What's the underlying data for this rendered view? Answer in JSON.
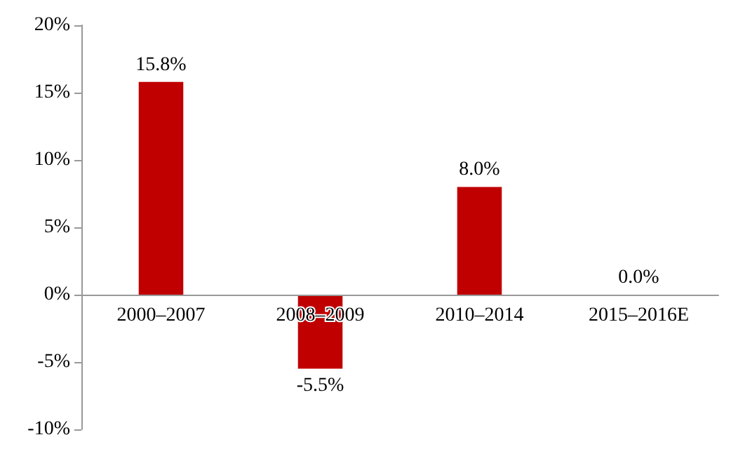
{
  "chart_data": {
    "type": "bar",
    "categories": [
      "2000–2007",
      "2008–2009",
      "2010–2014",
      "2015–2016E"
    ],
    "values": [
      15.8,
      -5.5,
      8.0,
      0.0
    ],
    "value_labels": [
      "15.8%",
      "-5.5%",
      "8.0%",
      "0.0%"
    ],
    "color": "#c00000",
    "ylim": [
      -10,
      20
    ],
    "yticks": [
      {
        "value": -10,
        "label": "-10%"
      },
      {
        "value": -5,
        "label": "-5%"
      },
      {
        "value": 0,
        "label": "0%"
      },
      {
        "value": 5,
        "label": "5%"
      },
      {
        "value": 10,
        "label": "10%"
      },
      {
        "value": 15,
        "label": "15%"
      },
      {
        "value": 20,
        "label": "20%"
      }
    ],
    "grid": false
  }
}
